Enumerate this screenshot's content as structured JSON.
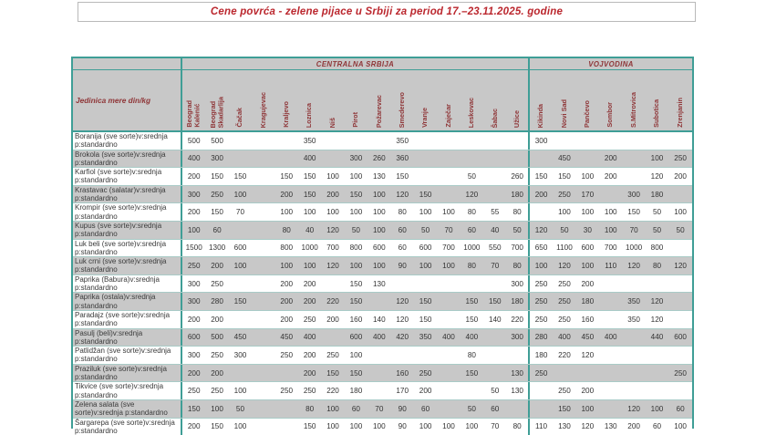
{
  "title": "Cene povrća - zelene pijace u Srbiji za period  17.–23.11.2025. godine",
  "colors": {
    "title_red": "#bb272e",
    "header_maroon": "#8f3638",
    "grid_teal": "#3f9e96",
    "stripe_gray": "#c8c8c8",
    "value_text": "#333333"
  },
  "table": {
    "unit_header": "Jedinica mere din/kg",
    "groups": [
      {
        "label": "CENTRALNA SRBIJA",
        "cities": [
          "Beograd\nKalenić",
          "Beograd\nSkadarlija",
          "Čačak",
          "Kragujevac",
          "Kraljevo",
          "Loznica",
          "Niš",
          "Pirot",
          "Požarevac",
          "Smederevo",
          "Vranje",
          "Zaječar",
          "Leskovac",
          "Šabac",
          "Užice"
        ]
      },
      {
        "label": "VOJVODINA",
        "cities": [
          "Kikinda",
          "Novi Sad",
          "Pančevo",
          "Sombor",
          "S.Mitrovica",
          "Subotica",
          "Zrenjanin"
        ]
      }
    ],
    "rows": [
      {
        "label": "Boranija (sve sorte)v:srednja p:standardno",
        "values": [
          "500",
          "500",
          "",
          "",
          "",
          "350",
          "",
          "",
          "",
          "350",
          "",
          "",
          "",
          "",
          "",
          "300",
          "",
          "",
          "",
          "",
          "",
          ""
        ]
      },
      {
        "label": "Brokola (sve sorte)v:srednja p:standardno",
        "values": [
          "400",
          "300",
          "",
          "",
          "",
          "400",
          "",
          "300",
          "260",
          "360",
          "",
          "",
          "",
          "",
          "",
          "",
          "450",
          "",
          "200",
          "",
          "100",
          "250"
        ]
      },
      {
        "label": "Karfiol (sve sorte)v:srednja p:standardno",
        "values": [
          "200",
          "150",
          "150",
          "",
          "150",
          "150",
          "100",
          "100",
          "130",
          "150",
          "",
          "",
          "50",
          "",
          "260",
          "150",
          "150",
          "100",
          "200",
          "",
          "120",
          "200"
        ]
      },
      {
        "label": "Krastavac (salatar)v:srednja p:standardno",
        "values": [
          "300",
          "250",
          "100",
          "",
          "200",
          "150",
          "200",
          "150",
          "100",
          "120",
          "150",
          "",
          "120",
          "",
          "180",
          "200",
          "250",
          "170",
          "",
          "300",
          "180",
          ""
        ]
      },
      {
        "label": "Krompir (sve sorte)v:srednja p:standardno",
        "values": [
          "200",
          "150",
          "70",
          "",
          "100",
          "100",
          "100",
          "100",
          "100",
          "80",
          "100",
          "100",
          "80",
          "55",
          "80",
          "",
          "100",
          "100",
          "100",
          "150",
          "50",
          "100"
        ]
      },
      {
        "label": "Kupus (sve sorte)v:srednja p:standardno",
        "values": [
          "100",
          "60",
          "",
          "",
          "80",
          "40",
          "120",
          "50",
          "100",
          "60",
          "50",
          "70",
          "60",
          "40",
          "50",
          "120",
          "50",
          "30",
          "100",
          "70",
          "50",
          "50"
        ]
      },
      {
        "label": "Luk beli (sve sorte)v:srednja p:standardno",
        "values": [
          "1500",
          "1300",
          "600",
          "",
          "800",
          "1000",
          "700",
          "800",
          "600",
          "60",
          "600",
          "700",
          "1000",
          "550",
          "700",
          "650",
          "1100",
          "600",
          "700",
          "1000",
          "800",
          ""
        ]
      },
      {
        "label": "Luk crni (sve sorte)v:srednja p:standardno",
        "values": [
          "250",
          "200",
          "100",
          "",
          "100",
          "100",
          "120",
          "100",
          "100",
          "90",
          "100",
          "100",
          "80",
          "70",
          "80",
          "100",
          "120",
          "100",
          "110",
          "120",
          "80",
          "120"
        ]
      },
      {
        "label": "Paprika (Babura)v:srednja p:standardno",
        "values": [
          "300",
          "250",
          "",
          "",
          "200",
          "200",
          "",
          "150",
          "130",
          "",
          "",
          "",
          "",
          "",
          "300",
          "250",
          "250",
          "200",
          "",
          "",
          "",
          ""
        ]
      },
      {
        "label": "Paprika (ostala)v:srednja p:standardno",
        "values": [
          "300",
          "280",
          "150",
          "",
          "200",
          "200",
          "220",
          "150",
          "",
          "120",
          "150",
          "",
          "150",
          "150",
          "180",
          "250",
          "250",
          "180",
          "",
          "350",
          "120",
          ""
        ]
      },
      {
        "label": "Paradajz (sve sorte)v:srednja p:standardno",
        "values": [
          "200",
          "200",
          "",
          "",
          "200",
          "250",
          "200",
          "160",
          "140",
          "120",
          "150",
          "",
          "150",
          "140",
          "220",
          "250",
          "250",
          "160",
          "",
          "350",
          "120",
          ""
        ]
      },
      {
        "label": "Pasulj (beli)v:srednja p:standardno",
        "values": [
          "600",
          "500",
          "450",
          "",
          "450",
          "400",
          "",
          "600",
          "400",
          "420",
          "350",
          "400",
          "400",
          "",
          "300",
          "280",
          "400",
          "450",
          "400",
          "",
          "440",
          "600"
        ]
      },
      {
        "label": "Patlidžan (sve sorte)v:srednja p:standardno",
        "values": [
          "300",
          "250",
          "300",
          "",
          "250",
          "200",
          "250",
          "100",
          "",
          "",
          "",
          "",
          "80",
          "",
          "",
          "180",
          "220",
          "120",
          "",
          "",
          "",
          ""
        ]
      },
      {
        "label": "Praziluk (sve sorte)v:srednja p:standardno",
        "values": [
          "200",
          "200",
          "",
          "",
          "",
          "200",
          "150",
          "150",
          "",
          "160",
          "250",
          "",
          "150",
          "",
          "130",
          "250",
          "",
          "",
          "",
          "",
          "",
          "250"
        ]
      },
      {
        "label": "Tikvice (sve sorte)v:srednja p:standardno",
        "values": [
          "250",
          "250",
          "100",
          "",
          "250",
          "250",
          "220",
          "180",
          "",
          "170",
          "200",
          "",
          "",
          "50",
          "130",
          "",
          "250",
          "200",
          "",
          "",
          "",
          ""
        ]
      },
      {
        "label": "Zelena salata (sve sorte)v:srednja p:standardno",
        "values": [
          "150",
          "100",
          "50",
          "",
          "",
          "80",
          "100",
          "60",
          "70",
          "90",
          "60",
          "",
          "50",
          "60",
          "",
          "",
          "150",
          "100",
          "",
          "120",
          "100",
          "60"
        ]
      },
      {
        "label": "Šargarepa (sve sorte)v:srednja p:standardno",
        "values": [
          "200",
          "150",
          "100",
          "",
          "",
          "150",
          "100",
          "100",
          "100",
          "90",
          "100",
          "100",
          "100",
          "70",
          "80",
          "110",
          "130",
          "120",
          "130",
          "200",
          "60",
          "100"
        ]
      }
    ]
  }
}
